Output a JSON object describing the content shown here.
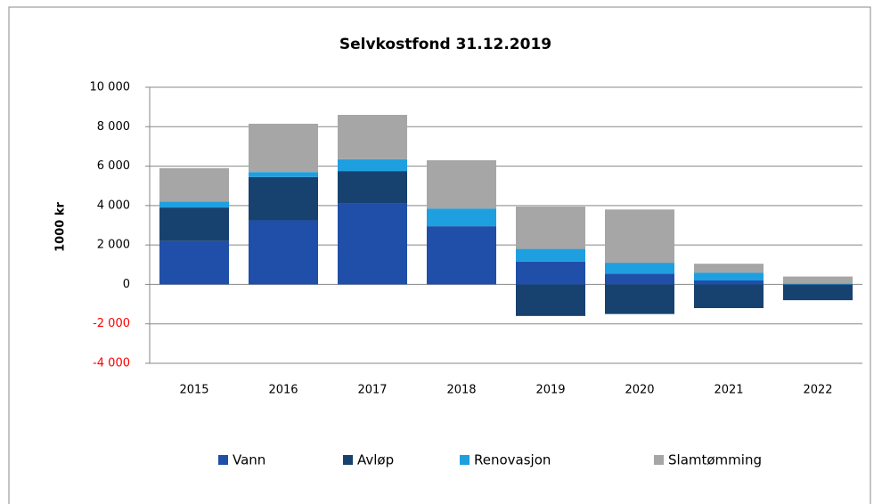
{
  "chart_data": {
    "type": "stacked_bar",
    "title": "Selvkostfond 31.12.2019",
    "y_label": "1000 kr",
    "categories": [
      "2015",
      "2016",
      "2017",
      "2018",
      "2019",
      "2020",
      "2021",
      "2022"
    ],
    "series": [
      {
        "name": "Vann",
        "color": "#1f4fa8",
        "values": [
          2200,
          3250,
          4100,
          2950,
          1150,
          550,
          200,
          0
        ]
      },
      {
        "name": "Avløp",
        "color": "#17426f",
        "values": [
          1700,
          2200,
          1650,
          0,
          -1600,
          -1500,
          -1200,
          -800
        ]
      },
      {
        "name": "Renovasjon",
        "color": "#1e9fe0",
        "values": [
          300,
          250,
          600,
          900,
          650,
          550,
          400,
          50
        ]
      },
      {
        "name": "Slamtømming",
        "color": "#a6a6a6",
        "values": [
          1700,
          2450,
          2250,
          2450,
          2150,
          2700,
          450,
          350
        ]
      }
    ],
    "ylim": [
      -4000,
      10000
    ],
    "yticks": [
      {
        "value": -4000,
        "label": "-4 000"
      },
      {
        "value": -2000,
        "label": "-2 000"
      },
      0,
      {
        "value": 2000,
        "label": "2 000"
      },
      {
        "value": 4000,
        "label": "4 000"
      },
      {
        "value": 6000,
        "label": "6 000"
      },
      {
        "value": 8000,
        "label": "8 000"
      },
      {
        "value": 10000,
        "label": "10 000"
      }
    ],
    "grid": true,
    "negative_tick_color": "#ff0000",
    "legend": "bottom"
  }
}
